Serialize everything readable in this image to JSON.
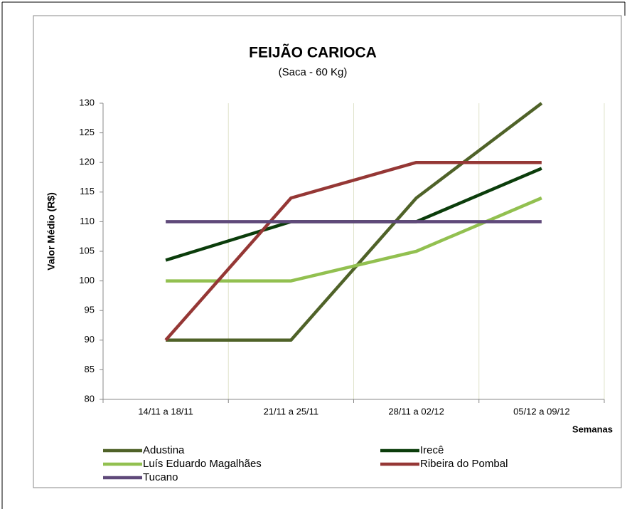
{
  "chart_data": {
    "type": "line",
    "title": "FEIJÃO CARIOCA",
    "subtitle": "(Saca - 60 Kg)",
    "y_label": "Valor Médio (R$)",
    "x_label": "Semanas",
    "categories": [
      "14/11 a 18/11",
      "21/11 a 25/11",
      "28/11 a 02/12",
      "05/12 a 09/12"
    ],
    "series": [
      {
        "name": "Adustina",
        "color": "#4f6228",
        "values": [
          90,
          90,
          114,
          130
        ]
      },
      {
        "name": "Irecê",
        "color": "#0b3d0b",
        "values": [
          103.5,
          110,
          110,
          119
        ]
      },
      {
        "name": "Luís Eduardo Magalhães",
        "color": "#92c050",
        "values": [
          100,
          100,
          105,
          114
        ]
      },
      {
        "name": "Ribeira do Pombal",
        "color": "#953735",
        "values": [
          90,
          114,
          120,
          120
        ]
      },
      {
        "name": "Tucano",
        "color": "#5f497a",
        "values": [
          110,
          110,
          110,
          110
        ]
      }
    ],
    "ylim": [
      80,
      130
    ],
    "yticks": [
      80,
      85,
      90,
      95,
      100,
      105,
      110,
      115,
      120,
      125,
      130
    ],
    "grid": true
  }
}
